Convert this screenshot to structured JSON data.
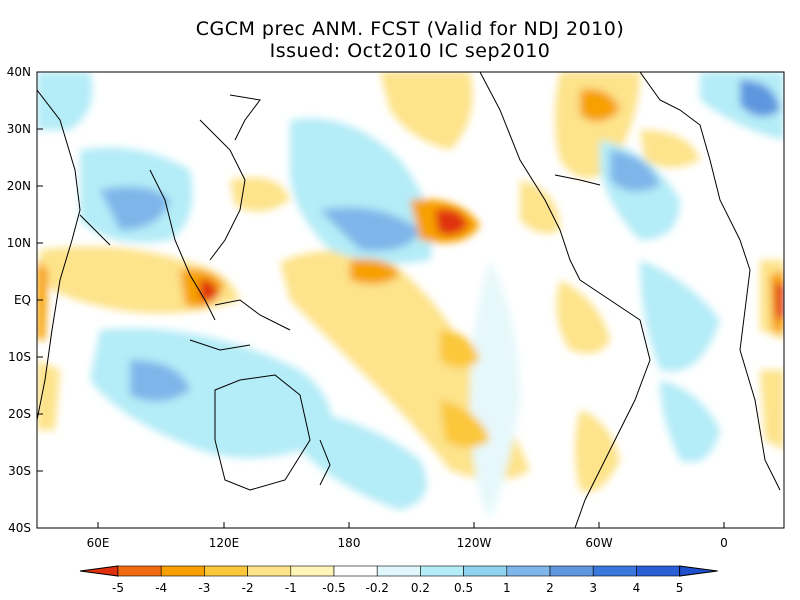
{
  "title": {
    "line1": "CGCM prec ANM. FCST  (Valid for NDJ 2010)",
    "line2": "Issued:  Oct2010 IC sep2010"
  },
  "axes": {
    "lat_labels": [
      "40N",
      "30N",
      "20N",
      "10N",
      "EQ",
      "10S",
      "20S",
      "30S",
      "40S"
    ],
    "lon_labels": [
      "60E",
      "120E",
      "180",
      "120W",
      "60W",
      "0"
    ]
  },
  "colorbar": {
    "labels": [
      "-5",
      "-4",
      "-3",
      "-2",
      "-1",
      "-0.5",
      "-0.2",
      "0.2",
      "0.5",
      "1",
      "2",
      "3",
      "4",
      "5"
    ],
    "colors": [
      "#e0300f",
      "#f26a10",
      "#f7a000",
      "#fbc73a",
      "#fde38a",
      "#fff4b8",
      "#ffffff",
      "#dff7fb",
      "#b4ecf7",
      "#8fd3f0",
      "#7fb6ea",
      "#5f97df",
      "#3a78dc",
      "#2b5fd6",
      "#1f4fcc"
    ]
  }
}
